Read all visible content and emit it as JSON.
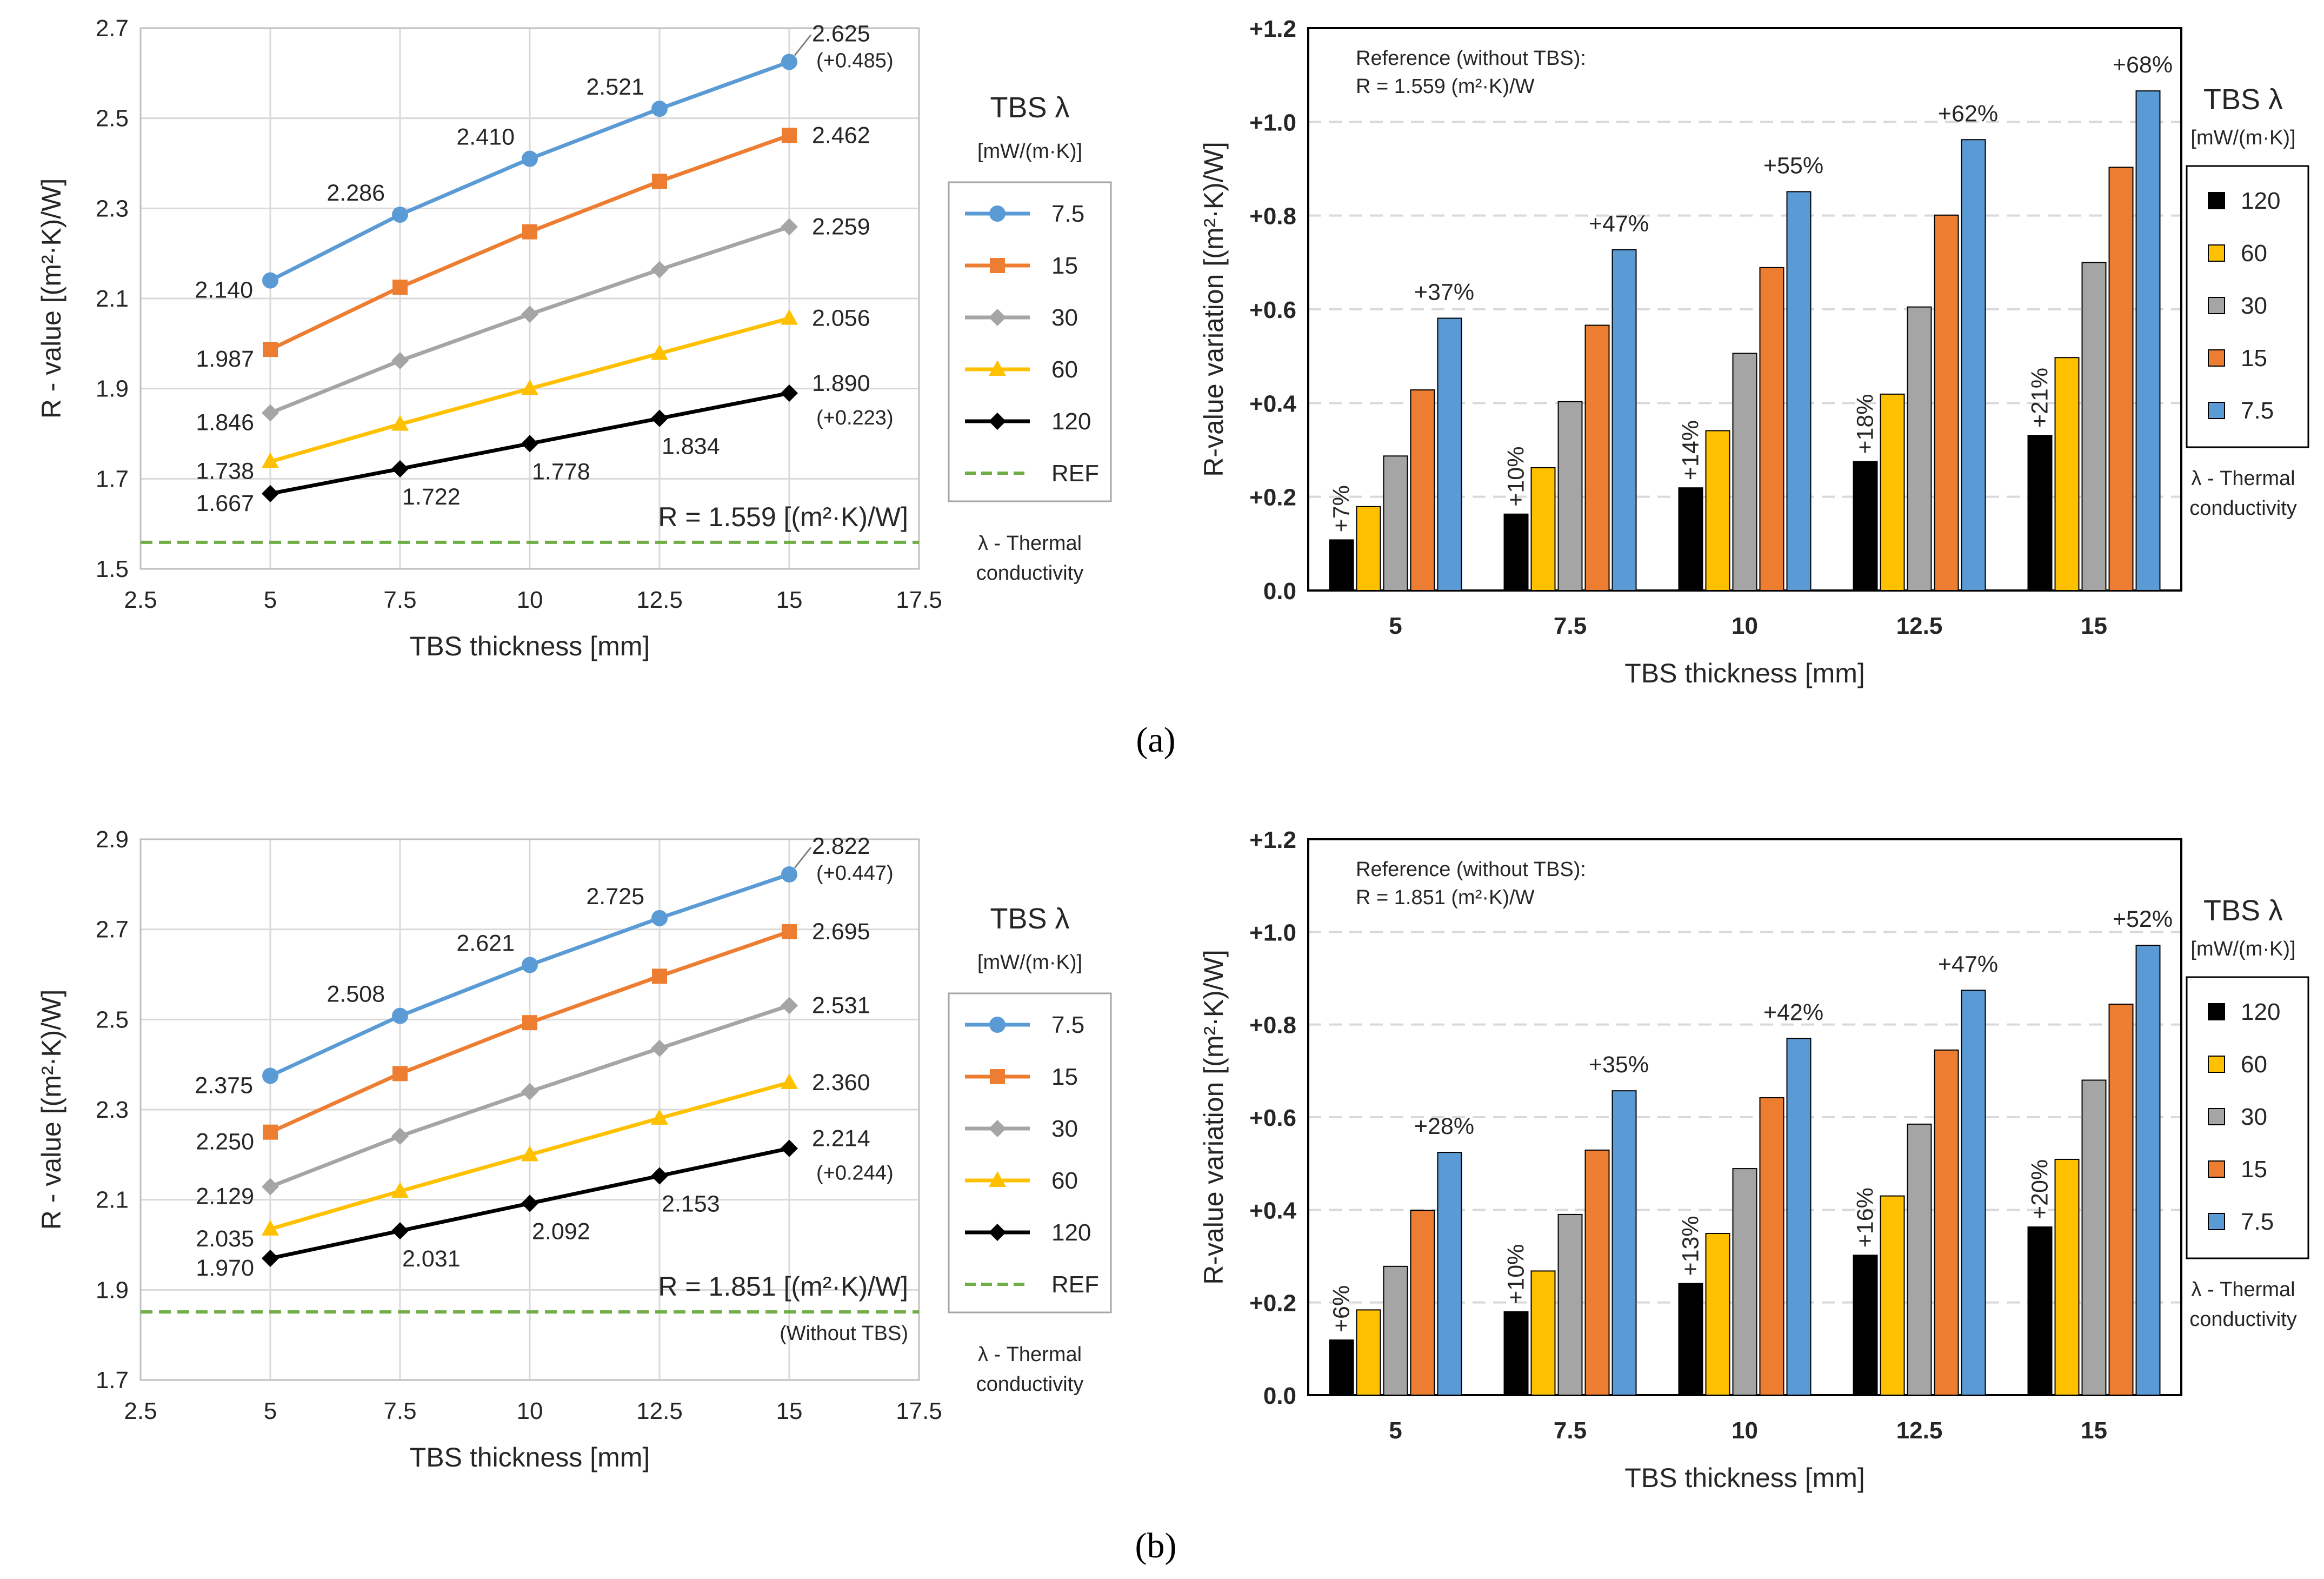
{
  "colors": {
    "l7_5": "#5B9BD5",
    "l15": "#ED7D31",
    "l30": "#A5A5A5",
    "l60": "#FFC000",
    "l120": "#000000",
    "ref": "#70AD47",
    "grid": "#D9D9D9"
  },
  "panels": [
    {
      "label": "(a)",
      "line_chart": {
        "type": "line",
        "xlabel": "TBS thickness [mm]",
        "ylabel": "R - value  [(m²·K)/W]",
        "xlim": [
          2.5,
          17.5
        ],
        "ylim": [
          1.5,
          2.7
        ],
        "xticks": [
          "2.5",
          "5",
          "7.5",
          "10",
          "12.5",
          "15",
          "17.5"
        ],
        "yticks": [
          "1.5",
          "1.7",
          "1.9",
          "2.1",
          "2.3",
          "2.5",
          "2.7"
        ],
        "x": [
          5,
          7.5,
          10,
          12.5,
          15
        ],
        "series": [
          {
            "name": "7.5",
            "marker": "circle",
            "values": [
              2.14,
              2.286,
              2.41,
              2.521,
              2.625
            ]
          },
          {
            "name": "15",
            "marker": "square",
            "values": [
              1.987,
              2.125,
              2.248,
              2.36,
              2.462
            ]
          },
          {
            "name": "30",
            "marker": "diamond",
            "values": [
              1.846,
              1.962,
              2.065,
              2.164,
              2.259
            ]
          },
          {
            "name": "60",
            "marker": "triangle",
            "values": [
              1.738,
              1.821,
              1.9,
              1.978,
              2.056
            ]
          },
          {
            "name": "120",
            "marker": "diamond",
            "values": [
              1.667,
              1.722,
              1.778,
              1.834,
              1.89
            ]
          }
        ],
        "ref_value": 1.559,
        "labels": {
          "s7_5": [
            "2.140",
            "2.286",
            "2.410",
            "2.521",
            "2.625"
          ],
          "s15_start": "1.987",
          "s15_end": "2.462",
          "s30_start": "1.846",
          "s30_end": "2.259",
          "s60_start": "1.738",
          "s60_end": "2.056",
          "s120": [
            "1.667",
            "1.722",
            "1.778",
            "1.834",
            "1.890"
          ],
          "delta_top": "(+0.485)",
          "delta_bottom": "(+0.223)"
        },
        "ref_label": "R = 1.559 [(m²·K)/W]",
        "ref_sub": "",
        "legend": {
          "title": "TBS λ",
          "unit": "[mW/(m·K)]",
          "items": [
            "7.5",
            "15",
            "30",
            "60",
            "120",
            "REF"
          ],
          "footer1": "λ - Thermal",
          "footer2": "conductivity"
        }
      },
      "bar_chart": {
        "type": "bar",
        "xlabel": "TBS thickness [mm]",
        "ylabel": "R-value variation [(m²·K)/W]",
        "ylim": [
          0,
          1.2
        ],
        "yticks": [
          "0.0",
          "+0.2",
          "+0.4",
          "+0.6",
          "+0.8",
          "+1.0",
          "+1.2"
        ],
        "categories": [
          "5",
          "7.5",
          "10",
          "12.5",
          "15"
        ],
        "series": [
          {
            "name": "120",
            "values": [
              0.108,
              0.163,
              0.219,
              0.275,
              0.331
            ]
          },
          {
            "name": "60",
            "values": [
              0.179,
              0.262,
              0.341,
              0.419,
              0.497
            ]
          },
          {
            "name": "30",
            "values": [
              0.287,
              0.403,
              0.506,
              0.605,
              0.7
            ]
          },
          {
            "name": "15",
            "values": [
              0.428,
              0.566,
              0.689,
              0.801,
              0.903
            ]
          },
          {
            "name": "7.5",
            "values": [
              0.581,
              0.727,
              0.851,
              0.962,
              1.066
            ]
          }
        ],
        "low_pct": [
          "+7%",
          "+10%",
          "+14%",
          "+18%",
          "+21%"
        ],
        "high_pct": [
          "+37%",
          "+47%",
          "+55%",
          "+62%",
          "+68%"
        ],
        "reference_line1": "Reference (without TBS):",
        "reference_line2": "R = 1.559 (m²·K)/W",
        "legend": {
          "title": "TBS λ",
          "unit": "[mW/(m·K)]",
          "items": [
            "120",
            "60",
            "30",
            "15",
            "7.5"
          ],
          "footer1": "λ - Thermal",
          "footer2": "conductivity"
        }
      }
    },
    {
      "label": "(b)",
      "line_chart": {
        "type": "line",
        "xlabel": "TBS thickness [mm]",
        "ylabel": "R - value  [(m²·K)/W]",
        "xlim": [
          2.5,
          17.5
        ],
        "ylim": [
          1.7,
          2.9
        ],
        "xticks": [
          "2.5",
          "5",
          "7.5",
          "10",
          "12.5",
          "15",
          "17.5"
        ],
        "yticks": [
          "1.7",
          "1.9",
          "2.1",
          "2.3",
          "2.5",
          "2.7",
          "2.9"
        ],
        "x": [
          5,
          7.5,
          10,
          12.5,
          15
        ],
        "series": [
          {
            "name": "7.5",
            "marker": "circle",
            "values": [
              2.375,
              2.508,
              2.621,
              2.725,
              2.822
            ]
          },
          {
            "name": "15",
            "marker": "square",
            "values": [
              2.25,
              2.38,
              2.493,
              2.596,
              2.695
            ]
          },
          {
            "name": "30",
            "marker": "diamond",
            "values": [
              2.129,
              2.241,
              2.34,
              2.436,
              2.531
            ]
          },
          {
            "name": "60",
            "marker": "triangle",
            "values": [
              2.035,
              2.119,
              2.2,
              2.281,
              2.36
            ]
          },
          {
            "name": "120",
            "marker": "diamond",
            "values": [
              1.97,
              2.031,
              2.092,
              2.153,
              2.214
            ]
          }
        ],
        "ref_value": 1.851,
        "labels": {
          "s7_5": [
            "2.375",
            "2.508",
            "2.621",
            "2.725",
            "2.822"
          ],
          "s15_start": "2.250",
          "s15_end": "2.695",
          "s30_start": "2.129",
          "s30_end": "2.531",
          "s60_start": "2.035",
          "s60_end": "2.360",
          "s120": [
            "1.970",
            "2.031",
            "2.092",
            "2.153",
            "2.214"
          ],
          "delta_top": "(+0.447)",
          "delta_bottom": "(+0.244)"
        },
        "ref_label": "R = 1.851 [(m²·K)/W]",
        "ref_sub": "(Without TBS)",
        "legend": {
          "title": "TBS λ",
          "unit": "[mW/(m·K)]",
          "items": [
            "7.5",
            "15",
            "30",
            "60",
            "120",
            "REF"
          ],
          "footer1": "λ - Thermal",
          "footer2": "conductivity"
        }
      },
      "bar_chart": {
        "type": "bar",
        "xlabel": "TBS thickness [mm]",
        "ylabel": "R-value variation [(m²·K)/W]",
        "ylim": [
          0,
          1.2
        ],
        "yticks": [
          "0.0",
          "+0.2",
          "+0.4",
          "+0.6",
          "+0.8",
          "+1.0",
          "+1.2"
        ],
        "categories": [
          "5",
          "7.5",
          "10",
          "12.5",
          "15"
        ],
        "series": [
          {
            "name": "120",
            "values": [
              0.119,
              0.18,
              0.241,
              0.302,
              0.363
            ]
          },
          {
            "name": "60",
            "values": [
              0.184,
              0.268,
              0.349,
              0.43,
              0.509
            ]
          },
          {
            "name": "30",
            "values": [
              0.278,
              0.39,
              0.489,
              0.585,
              0.68
            ]
          },
          {
            "name": "15",
            "values": [
              0.399,
              0.529,
              0.642,
              0.745,
              0.844
            ]
          },
          {
            "name": "7.5",
            "values": [
              0.524,
              0.657,
              0.77,
              0.874,
              0.971
            ]
          }
        ],
        "low_pct": [
          "+6%",
          "+10%",
          "+13%",
          "+16%",
          "+20%"
        ],
        "high_pct": [
          "+28%",
          "+35%",
          "+42%",
          "+47%",
          "+52%"
        ],
        "reference_line1": "Reference (without TBS):",
        "reference_line2": "R = 1.851 (m²·K)/W",
        "legend": {
          "title": "TBS λ",
          "unit": "[mW/(m·K)]",
          "items": [
            "120",
            "60",
            "30",
            "15",
            "7.5"
          ],
          "footer1": "λ - Thermal",
          "footer2": "conductivity"
        }
      }
    }
  ]
}
